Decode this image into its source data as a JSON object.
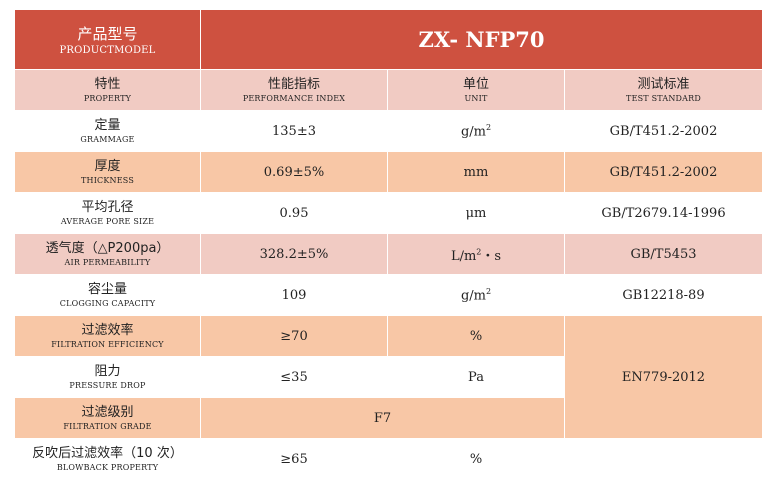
{
  "product": {
    "label_cn": "产品型号",
    "label_en": "PRODUCTMODEL",
    "model": "ZX- NFP70"
  },
  "columns": [
    {
      "cn": "特性",
      "en": "PROPERTY"
    },
    {
      "cn": "性能指标",
      "en": "PERFORMANCE INDEX"
    },
    {
      "cn": "单位",
      "en": "UNIT"
    },
    {
      "cn": "测试标准",
      "en": "TEST STANDARD"
    }
  ],
  "rows": [
    {
      "cn": "定量",
      "en": "GRAMMAGE",
      "value": "135±3",
      "unit": "g/m",
      "unit_sup": "2",
      "standard": "GB/T451.2-2002"
    },
    {
      "cn": "厚度",
      "en": "THICKNESS",
      "value": "0.69±5%",
      "unit": "mm",
      "unit_sup": "",
      "standard": "GB/T451.2-2002"
    },
    {
      "cn": "平均孔径",
      "en": "AVERAGE PORE SIZE",
      "value": "0.95",
      "unit": "μm",
      "unit_sup": "",
      "standard": "GB/T2679.14-1996"
    },
    {
      "cn": "透气度（△P200pa）",
      "en": "AIR PERMEABILITY",
      "value": "328.2±5%",
      "unit": "L/m",
      "unit_sup": "2",
      "unit_tail": "・s",
      "standard": "GB/T5453"
    },
    {
      "cn": "容尘量",
      "en": "CLOGGING CAPACITY",
      "value": "109",
      "unit": "g/m",
      "unit_sup": "2",
      "standard": "GB12218-89"
    },
    {
      "cn": "过滤效率",
      "en": "FILTRATION EFFICIENCY",
      "value": "≥70",
      "unit": "%",
      "unit_sup": ""
    },
    {
      "cn": "阻力",
      "en": "PRESSURE DROP",
      "value": "≤35",
      "unit": "Pa",
      "unit_sup": ""
    },
    {
      "cn": "过滤级别",
      "en": "FILTRATION GRADE",
      "value": "F7"
    },
    {
      "cn": "反吹后过滤效率（10 次）",
      "en": "BLOWBACK PROPERTY",
      "value": "≥65",
      "unit": "%",
      "unit_sup": ""
    }
  ],
  "shared_standard": "EN779-2012",
  "colors": {
    "header_red": "#ce5140",
    "pink": "#f1cbc3",
    "orange": "#f8c7a6",
    "white": "#ffffff"
  }
}
